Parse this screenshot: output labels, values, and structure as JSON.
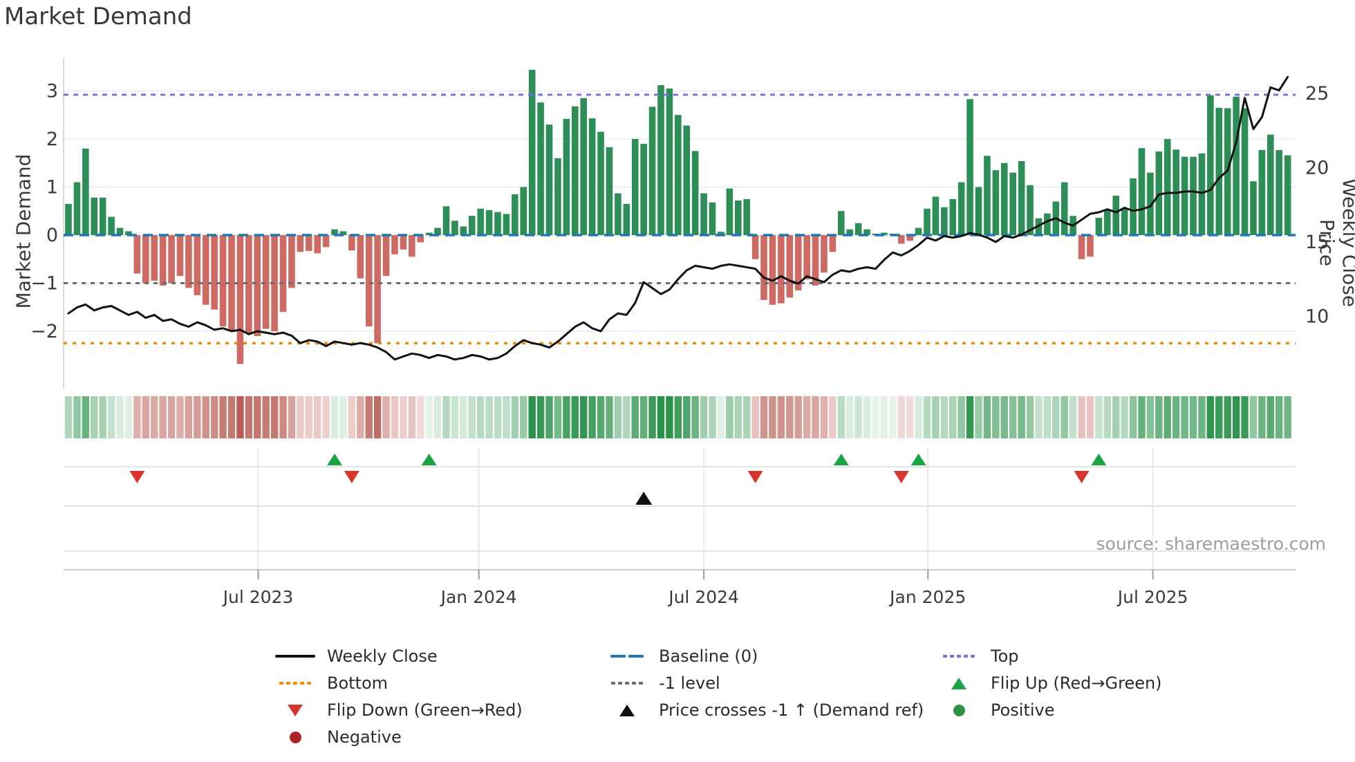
{
  "title": "Market Demand",
  "source": "source: sharemaestro.com",
  "left_axis": {
    "title": "Market Demand",
    "tick_labels": [
      "3",
      "2",
      "1",
      "0",
      "−1",
      "−2"
    ],
    "tick_values": [
      3,
      2,
      1,
      0,
      -1,
      -2
    ]
  },
  "right_axis": {
    "title": "Weekly Close Price",
    "tick_labels": [
      "25",
      "20",
      "15",
      "10"
    ],
    "tick_values": [
      25,
      20,
      15,
      10
    ]
  },
  "x_axis": {
    "tick_labels": [
      "Jul 2023",
      "Jan 2024",
      "Jul 2024",
      "Jan 2025",
      "Jul 2025"
    ],
    "tick_weeks": [
      22.1,
      47.8,
      74.0,
      100.1,
      126.3
    ]
  },
  "colors": {
    "green_bar": "#2e8e58",
    "red_bar": "#cd6a63",
    "baseline": "#1f77b4",
    "top_line": "#7b6fe0",
    "minus1_line": "#6b6b77",
    "bottom_line": "#f08c00",
    "price_line": "#111111",
    "flip_up": "#1ca343",
    "flip_down": "#da352c",
    "price_cross": "#111111",
    "positive_dot": "#2e9244",
    "negative_dot": "#b22222",
    "grid": "#e9e9f2",
    "row_line": "#dadada",
    "vgrid": "#e3e3e3",
    "axis_line": "#cccccc",
    "spine": "#cfcfcf",
    "heat_green_lo": "#ecf6ef",
    "heat_green_hi": "#2b924a",
    "heat_red_lo": "#f8e9e8",
    "heat_red_hi": "#b75c54"
  },
  "chart_data": {
    "type": "bar",
    "weeks": 143,
    "title": "Market Demand",
    "ylabel_left": "Market Demand",
    "ylabel_right": "Weekly Close Price",
    "demand_ylim": [
      -3.2,
      3.7
    ],
    "price_ylim": [
      5,
      27.4
    ],
    "levels": {
      "top": 2.92,
      "baseline": 0,
      "minus1": -1,
      "bottom": -2.25
    },
    "series": [
      {
        "name": "Market Demand",
        "type": "bar",
        "values": [
          0.65,
          1.1,
          1.8,
          0.78,
          0.78,
          0.38,
          0.15,
          0.08,
          -0.8,
          -1.0,
          -0.95,
          -1.05,
          -1.0,
          -0.85,
          -1.1,
          -1.25,
          -1.45,
          -1.55,
          -1.9,
          -2.0,
          -2.68,
          -2.05,
          -2.1,
          -1.95,
          -2.0,
          -1.6,
          -1.1,
          -0.35,
          -0.33,
          -0.38,
          -0.25,
          0.12,
          0.08,
          -0.32,
          -0.9,
          -1.9,
          -2.25,
          -0.85,
          -0.4,
          -0.3,
          -0.45,
          -0.15,
          0.05,
          0.15,
          0.6,
          0.3,
          0.18,
          0.4,
          0.55,
          0.52,
          0.48,
          0.44,
          0.85,
          1.0,
          3.44,
          2.76,
          2.3,
          1.6,
          2.42,
          2.68,
          2.85,
          2.43,
          2.15,
          1.83,
          0.87,
          0.65,
          2.0,
          1.9,
          2.67,
          3.12,
          3.05,
          2.5,
          2.28,
          1.75,
          0.87,
          0.68,
          0.07,
          0.97,
          0.72,
          0.75,
          -0.5,
          -1.35,
          -1.45,
          -1.42,
          -1.3,
          -1.15,
          -0.92,
          -1.05,
          -0.78,
          -0.35,
          0.5,
          0.12,
          0.25,
          0.12,
          0.03,
          0.05,
          0.03,
          -0.18,
          -0.12,
          0.15,
          0.55,
          0.8,
          0.58,
          0.75,
          1.1,
          2.83,
          1.0,
          1.65,
          1.35,
          1.5,
          1.3,
          1.54,
          1.04,
          0.35,
          0.45,
          0.7,
          1.1,
          0.4,
          -0.5,
          -0.45,
          0.36,
          0.53,
          0.82,
          0.55,
          1.18,
          1.81,
          1.3,
          1.74,
          2.0,
          1.78,
          1.63,
          1.63,
          1.7,
          2.91,
          2.65,
          2.64,
          2.88,
          2.64,
          1.12,
          1.77,
          2.09,
          1.77,
          1.66
        ]
      },
      {
        "name": "Weekly Close",
        "type": "line",
        "values": [
          10.2,
          10.6,
          10.8,
          10.4,
          10.6,
          10.7,
          10.4,
          10.1,
          10.3,
          9.9,
          10.1,
          9.7,
          9.8,
          9.5,
          9.3,
          9.6,
          9.4,
          9.1,
          9.2,
          9.0,
          9.1,
          8.8,
          9.0,
          8.9,
          8.8,
          8.9,
          8.7,
          8.2,
          8.4,
          8.3,
          8.0,
          8.3,
          8.2,
          8.1,
          8.2,
          8.1,
          7.9,
          7.6,
          7.1,
          7.3,
          7.5,
          7.4,
          7.2,
          7.4,
          7.3,
          7.1,
          7.2,
          7.4,
          7.3,
          7.1,
          7.2,
          7.5,
          8.0,
          8.4,
          8.2,
          8.1,
          7.9,
          8.3,
          8.8,
          9.3,
          9.6,
          9.2,
          9.0,
          9.8,
          10.2,
          10.1,
          10.9,
          12.3,
          11.9,
          11.5,
          11.8,
          12.5,
          13.1,
          13.4,
          13.3,
          13.2,
          13.4,
          13.5,
          13.4,
          13.3,
          13.2,
          12.6,
          12.4,
          12.7,
          12.4,
          12.2,
          12.7,
          12.5,
          12.3,
          12.8,
          13.1,
          13.0,
          13.2,
          13.3,
          13.2,
          13.8,
          14.3,
          14.1,
          14.4,
          14.8,
          15.3,
          15.1,
          15.4,
          15.3,
          15.4,
          15.6,
          15.5,
          15.3,
          15.0,
          15.4,
          15.3,
          15.5,
          15.8,
          16.1,
          16.4,
          16.6,
          16.3,
          16.1,
          16.5,
          16.9,
          17.0,
          17.2,
          17.0,
          17.3,
          17.1,
          17.2,
          17.4,
          18.2,
          18.3,
          18.3,
          18.4,
          18.4,
          18.3,
          18.5,
          19.3,
          19.8,
          21.7,
          24.7,
          22.6,
          23.4,
          25.4,
          25.2,
          26.1
        ]
      }
    ],
    "markers": {
      "flip_up_weeks": [
        31,
        42,
        90,
        99,
        120
      ],
      "flip_down_weeks": [
        8,
        33,
        80,
        97,
        118
      ],
      "price_cross_weeks": [
        67
      ]
    },
    "heatmap": {
      "note": "color strip derived from Market Demand bar values"
    }
  },
  "legend": {
    "items": [
      {
        "label": "Weekly Close",
        "swatch": "line-black"
      },
      {
        "label": "Baseline (0)",
        "swatch": "dash-blue"
      },
      {
        "label": "Top",
        "swatch": "dot-purple"
      },
      {
        "label": "Bottom",
        "swatch": "dot-orange"
      },
      {
        "label": "-1 level",
        "swatch": "dot-gray"
      },
      {
        "label": "Flip Up (Red→Green)",
        "swatch": "tri-up-green"
      },
      {
        "label": "Flip Down (Green→Red)",
        "swatch": "tri-down-red"
      },
      {
        "label": "Price crosses -1 ↑ (Demand ref)",
        "swatch": "tri-up-black"
      },
      {
        "label": "Positive",
        "swatch": "circle-green"
      },
      {
        "label": "Negative",
        "swatch": "circle-darkred"
      }
    ]
  }
}
